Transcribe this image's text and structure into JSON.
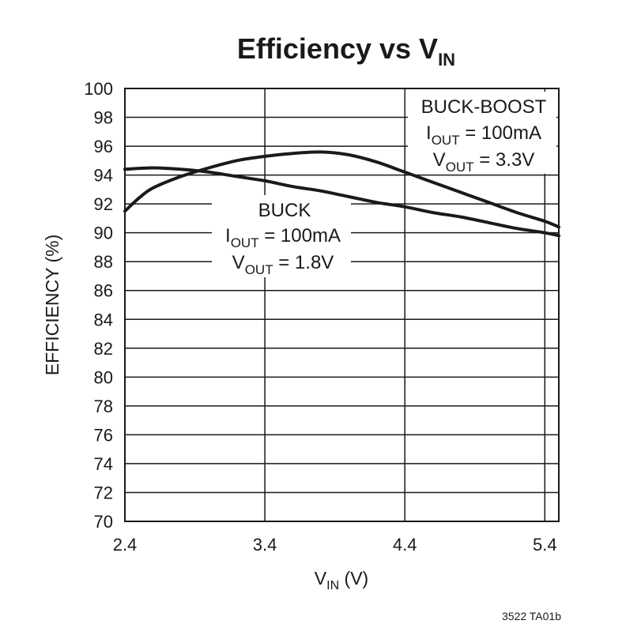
{
  "chart_data": {
    "type": "line",
    "title": {
      "main": "Efficiency vs V",
      "sub": "IN"
    },
    "xlabel": {
      "main": "V",
      "sub": "IN",
      "suffix": " (V)"
    },
    "ylabel": "EFFICIENCY (%)",
    "xlim": [
      2.4,
      5.5
    ],
    "ylim": [
      70,
      100
    ],
    "x_ticks": [
      2.4,
      3.4,
      4.4,
      5.4
    ],
    "x_tick_labels": [
      "2.4",
      "3.4",
      "4.4",
      "5.4"
    ],
    "y_ticks": [
      70,
      72,
      74,
      76,
      78,
      80,
      82,
      84,
      86,
      88,
      90,
      92,
      94,
      96,
      98,
      100
    ],
    "y_tick_labels": [
      "70",
      "72",
      "74",
      "76",
      "78",
      "80",
      "82",
      "84",
      "86",
      "88",
      "90",
      "92",
      "94",
      "96",
      "98",
      "100"
    ],
    "grid": true,
    "series": [
      {
        "name": "BUCK",
        "x": [
          2.4,
          2.6,
          2.8,
          3.0,
          3.2,
          3.4,
          3.6,
          3.8,
          4.0,
          4.2,
          4.4,
          4.6,
          4.8,
          5.0,
          5.2,
          5.4,
          5.5
        ],
        "y": [
          94.4,
          94.5,
          94.4,
          94.2,
          93.9,
          93.6,
          93.2,
          92.9,
          92.5,
          92.1,
          91.8,
          91.4,
          91.1,
          90.7,
          90.3,
          90.0,
          89.8
        ]
      },
      {
        "name": "BUCK-BOOST",
        "x": [
          2.4,
          2.5,
          2.6,
          2.8,
          3.0,
          3.2,
          3.4,
          3.6,
          3.8,
          4.0,
          4.2,
          4.4,
          4.6,
          4.8,
          5.0,
          5.2,
          5.4,
          5.5
        ],
        "y": [
          91.5,
          92.4,
          93.1,
          93.9,
          94.5,
          95.0,
          95.3,
          95.5,
          95.6,
          95.4,
          94.9,
          94.2,
          93.5,
          92.8,
          92.1,
          91.4,
          90.8,
          90.4
        ]
      }
    ],
    "annotations": {
      "buck": {
        "name": "BUCK",
        "iout": {
          "main": "I",
          "sub": "OUT",
          "rest": " = 100mA"
        },
        "vout": {
          "main": "V",
          "sub": "OUT",
          "rest": " = 1.8V"
        }
      },
      "buck_boost": {
        "name": "BUCK-BOOST",
        "iout": {
          "main": "I",
          "sub": "OUT",
          "rest": " = 100mA"
        },
        "vout": {
          "main": "V",
          "sub": "OUT",
          "rest": " = 3.3V"
        }
      }
    },
    "figure_code": "3522 TA01b"
  }
}
